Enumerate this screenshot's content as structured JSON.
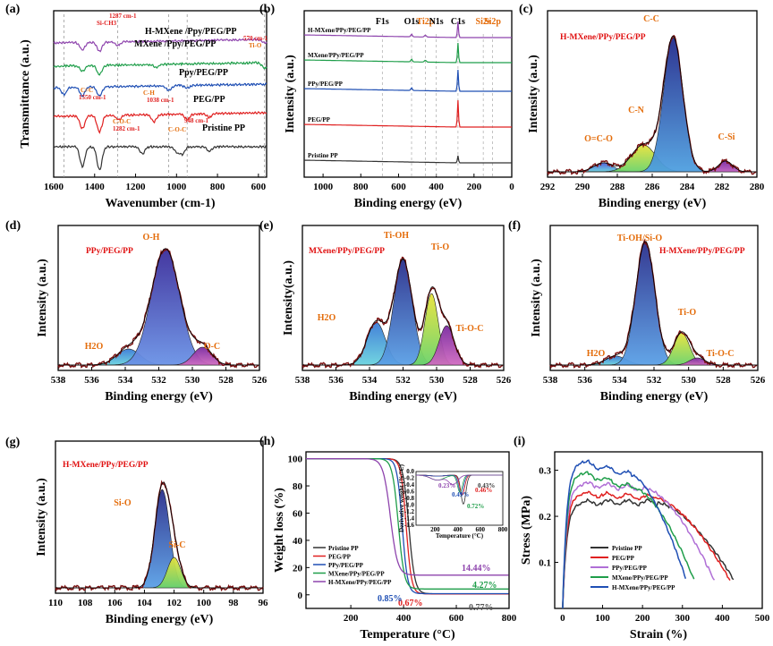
{
  "chart_data": [
    {
      "panel": "(a)",
      "type": "line",
      "title": "",
      "xlabel": "Wavenumber (cm-1)",
      "ylabel": "Transmittance (a.u.)",
      "xlim": [
        1600,
        560
      ],
      "xticks": [
        1600,
        1400,
        1200,
        1000,
        800,
        600
      ],
      "series": [
        {
          "name": "H-MXene /Ppy/PEG/PP",
          "color": "#8e44ad"
        },
        {
          "name": "MXene /Ppy/PEG/PP",
          "color": "#1f9e4a"
        },
        {
          "name": "Ppy/PEG/PP",
          "color": "#1f4fb4"
        },
        {
          "name": "PEG/PP",
          "color": "#e02020"
        },
        {
          "name": "Pristine PP",
          "color": "#333333"
        }
      ],
      "annotations": [
        "1287 cm-1",
        "Si-CH3",
        "570 cm-1",
        "Ti-O",
        "C=C",
        "1550 cm-1",
        "C-H",
        "1038 cm-1",
        "C-O-C",
        "1282 cm-1",
        "948 cm-1",
        "C-O-C"
      ]
    },
    {
      "panel": "(b)",
      "type": "line",
      "xlabel": "Binding energy (eV)",
      "ylabel": "Intensity (a.u.)",
      "xlim": [
        1100,
        0
      ],
      "xticks": [
        1000,
        900,
        800,
        700,
        600,
        500,
        400,
        300,
        200,
        100,
        0
      ],
      "series": [
        {
          "name": "H-MXene/PPy/PEG/PP",
          "color": "#8e44ad"
        },
        {
          "name": "MXene/PPy/PEG/PP",
          "color": "#1f9e4a"
        },
        {
          "name": "PPy/PEG/PP",
          "color": "#1f4fb4"
        },
        {
          "name": "PEG/PP",
          "color": "#e02020"
        },
        {
          "name": "Pristine PP",
          "color": "#333333"
        }
      ],
      "peak_labels": [
        {
          "label": "F1s",
          "x": 686
        },
        {
          "label": "O1s",
          "x": 531
        },
        {
          "label": "Ti2p",
          "x": 458
        },
        {
          "label": "N1s",
          "x": 400
        },
        {
          "label": "C1s",
          "x": 285
        },
        {
          "label": "Si2s",
          "x": 151
        },
        {
          "label": "Si2p",
          "x": 102
        }
      ]
    },
    {
      "panel": "(c)",
      "type": "area",
      "title": "H-MXene/PPy/PEG/PP",
      "xlabel": "Binding energy (eV)",
      "ylabel": "Intensity (a.u.)",
      "xlim": [
        292,
        280
      ],
      "xticks": [
        292,
        290,
        288,
        286,
        284,
        282,
        280
      ],
      "peaks": [
        {
          "label": "O=C-O",
          "center": 288.8
        },
        {
          "label": "C-N",
          "center": 286.5
        },
        {
          "label": "C-C",
          "center": 284.8
        },
        {
          "label": "C-Si",
          "center": 281.8
        }
      ]
    },
    {
      "panel": "(d)",
      "type": "area",
      "title": "PPy/PEG/PP",
      "xlabel": "Binding energy (eV)",
      "ylabel": "Intensity (a.u.)",
      "xlim": [
        538,
        526
      ],
      "xticks": [
        538,
        536,
        534,
        532,
        530,
        528,
        526
      ],
      "peaks": [
        {
          "label": "H2O",
          "center": 533.8
        },
        {
          "label": "O-H",
          "center": 531.6
        },
        {
          "label": "O-C",
          "center": 529.4
        }
      ]
    },
    {
      "panel": "(e)",
      "type": "area",
      "title": "MXene/PPy/PEG/PP",
      "xlabel": "Binding energy (eV)",
      "ylabel": "Intensity(a.u.)",
      "xlim": [
        538,
        526
      ],
      "xticks": [
        538,
        536,
        534,
        532,
        530,
        528,
        526
      ],
      "peaks": [
        {
          "label": "H2O",
          "center": 533.6
        },
        {
          "label": "Ti-OH",
          "center": 532.0
        },
        {
          "label": "Ti-O",
          "center": 530.3
        },
        {
          "label": "Ti-O-C",
          "center": 529.4
        }
      ]
    },
    {
      "panel": "(f)",
      "type": "area",
      "title": "H-MXene/PPy/PEG/PP",
      "xlabel": "Binding energy (eV)",
      "ylabel": "Intensity (a.u.)",
      "xlim": [
        538,
        526
      ],
      "xticks": [
        538,
        536,
        534,
        532,
        530,
        528,
        526
      ],
      "peaks": [
        {
          "label": "H2O",
          "center": 534.2
        },
        {
          "label": "Ti-OH/Si-O",
          "center": 532.5
        },
        {
          "label": "Ti-O",
          "center": 530.4
        },
        {
          "label": "Ti-O-C",
          "center": 529.5
        }
      ]
    },
    {
      "panel": "(g)",
      "type": "area",
      "title": "H-MXene/PPy/PEG/PP",
      "xlabel": "Binding energy (eV)",
      "ylabel": "Intensity (a.u.)",
      "xlim": [
        110,
        96
      ],
      "xticks": [
        110,
        108,
        106,
        104,
        102,
        100,
        98,
        96
      ],
      "peaks": [
        {
          "label": "Si-O",
          "center": 102.8
        },
        {
          "label": "Si-C",
          "center": 102.0
        }
      ]
    },
    {
      "panel": "(h)",
      "type": "line",
      "xlabel": "Temperature (°C)",
      "ylabel": "Weight loss (%)",
      "xlim": [
        30,
        800
      ],
      "ylim": [
        -10,
        105
      ],
      "xticks": [
        200,
        400,
        600,
        800
      ],
      "yticks": [
        0,
        20,
        40,
        60,
        80,
        100
      ],
      "series": [
        {
          "name": "Pristine PP",
          "color": "#333333",
          "residue": "0.77%"
        },
        {
          "name": "PEG/PP",
          "color": "#e02020",
          "residue": "0.67%"
        },
        {
          "name": "PPy/PEG/PP",
          "color": "#1f4fb4",
          "residue": "0.85%"
        },
        {
          "name": "MXene/PPy/PEG/PP",
          "color": "#1f9e4a",
          "residue": "4.27%"
        },
        {
          "name": "H-MXene/PPy/PEG/PP",
          "color": "#8e44ad",
          "residue": "14.44%"
        }
      ],
      "inset": {
        "xlabel": "Temperature (°C)",
        "ylabel": "Derivative weight (%/°C)",
        "xticks": [
          200,
          400,
          600,
          800
        ],
        "yticks": [
          "0.0",
          "-0.2",
          "-0.4",
          "-0.6",
          "-0.8",
          "-1.0",
          "-1.2",
          "-1.4",
          "-1.6"
        ],
        "labels": [
          "0.23%",
          "0.43%",
          "0.46%",
          "0.49%",
          "0.72%"
        ]
      }
    },
    {
      "panel": "(i)",
      "type": "line",
      "xlabel": "Strain (%)",
      "ylabel": "Stress (MPa)",
      "xlim": [
        -20,
        500
      ],
      "ylim": [
        0,
        0.34
      ],
      "xticks": [
        0,
        100,
        200,
        300,
        400,
        500
      ],
      "yticks": [
        0.1,
        0.2,
        0.3
      ],
      "series": [
        {
          "name": "Pristine PP",
          "color": "#333333"
        },
        {
          "name": "PEG/PP",
          "color": "#e02020"
        },
        {
          "name": "PPy/PEG/PP",
          "color": "#b06fd6"
        },
        {
          "name": "MXene/PPy/PEG/PP",
          "color": "#1f9e4a"
        },
        {
          "name": "H-MXene/PPy/PEG/PP",
          "color": "#1f4fb4"
        }
      ]
    }
  ]
}
